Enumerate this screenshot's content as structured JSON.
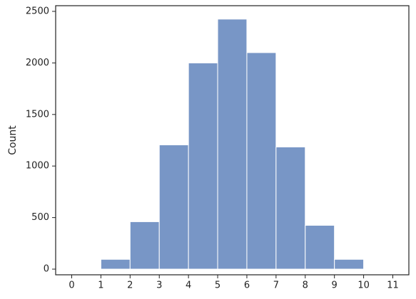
{
  "chart_data": {
    "type": "histogram",
    "ylabel": "Count",
    "bins": [
      0,
      1,
      2,
      3,
      4,
      5,
      6,
      7,
      8,
      9,
      10,
      11
    ],
    "values": [
      0,
      95,
      460,
      1205,
      2000,
      2425,
      2100,
      1185,
      425,
      95,
      0
    ],
    "color": "#7896c6",
    "xlim": [
      -0.55,
      11.55
    ],
    "xticks": [
      0,
      1,
      2,
      3,
      4,
      5,
      6,
      7,
      8,
      9,
      10,
      11
    ],
    "ylim": [
      -55,
      2555
    ],
    "yticks": [
      0,
      500,
      1000,
      1500,
      2000,
      2500
    ]
  }
}
